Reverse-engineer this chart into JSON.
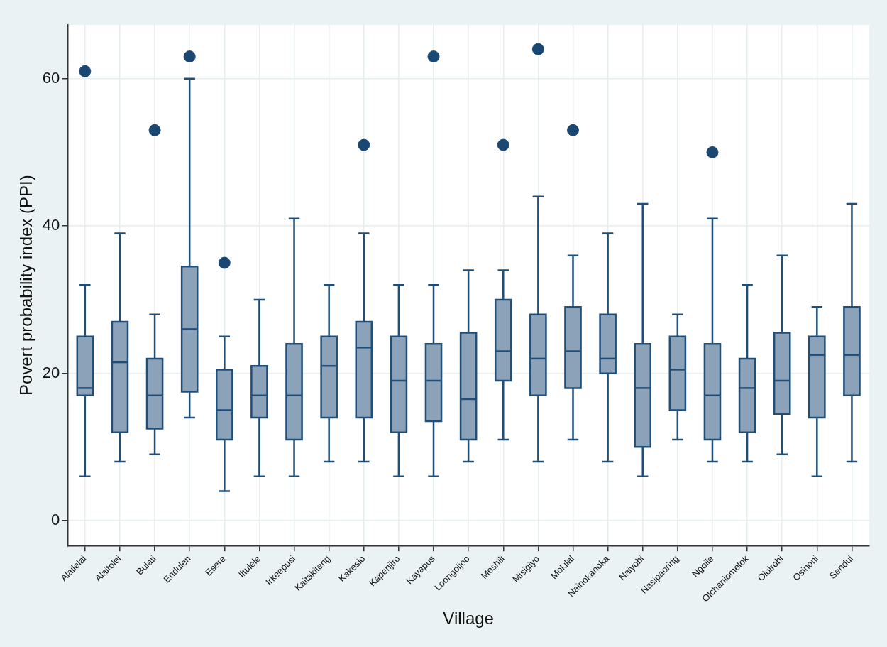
{
  "chart_data": {
    "type": "box",
    "xlabel": "Village",
    "ylabel": "Povert probability index (PPI)",
    "categories": [
      "Alailelai",
      "Alaitolei",
      "Bulati",
      "Endulen",
      "Esere",
      "Iltulele",
      "Irkeepusi",
      "Kaitakiteng",
      "Kakesio",
      "Kapenjiro",
      "Kayapus",
      "Loongoijoo",
      "Meshili",
      "Misigiyo",
      "Mokilal",
      "Nainokanoka",
      "Naiyobi",
      "Nasipaoring",
      "Ngoile",
      "Olchaniomelok",
      "Oloirobi",
      "Osinoni",
      "Sendui"
    ],
    "color": "#8ca2b8",
    "marker": "circle",
    "grid": true,
    "ylim": [
      -3.4,
      67.3
    ],
    "yticks": [
      0,
      20,
      40,
      60
    ],
    "boxes": [
      {
        "low": 6,
        "q1": 17,
        "median": 18,
        "q3": 25,
        "high": 32,
        "outliers": [
          61
        ]
      },
      {
        "low": 8,
        "q1": 12,
        "median": 21.5,
        "q3": 27,
        "high": 39
      },
      {
        "low": 9,
        "q1": 12.5,
        "median": 17,
        "q3": 22,
        "high": 28,
        "outliers": [
          53
        ]
      },
      {
        "low": 14,
        "q1": 17.5,
        "median": 26,
        "q3": 34.5,
        "high": 60,
        "outliers": [
          63
        ]
      },
      {
        "low": 4,
        "q1": 11,
        "median": 15,
        "q3": 20.5,
        "high": 25,
        "outliers": [
          35
        ]
      },
      {
        "low": 6,
        "q1": 14,
        "median": 17,
        "q3": 21,
        "high": 30
      },
      {
        "low": 6,
        "q1": 11,
        "median": 17,
        "q3": 24,
        "high": 41
      },
      {
        "low": 8,
        "q1": 14,
        "median": 21,
        "q3": 25,
        "high": 32
      },
      {
        "low": 8,
        "q1": 14,
        "median": 23.5,
        "q3": 27,
        "high": 39,
        "outliers": [
          51
        ]
      },
      {
        "low": 6,
        "q1": 12,
        "median": 19,
        "q3": 25,
        "high": 32
      },
      {
        "low": 6,
        "q1": 13.5,
        "median": 19,
        "q3": 24,
        "high": 32,
        "outliers": [
          63
        ]
      },
      {
        "low": 8,
        "q1": 11,
        "median": 16.5,
        "q3": 25.5,
        "high": 34
      },
      {
        "low": 11,
        "q1": 19,
        "median": 23,
        "q3": 30,
        "high": 34,
        "outliers": [
          51
        ]
      },
      {
        "low": 8,
        "q1": 17,
        "median": 22,
        "q3": 28,
        "high": 44,
        "outliers": [
          64
        ]
      },
      {
        "low": 11,
        "q1": 18,
        "median": 23,
        "q3": 29,
        "high": 36,
        "outliers": [
          53
        ]
      },
      {
        "low": 8,
        "q1": 20,
        "median": 22,
        "q3": 28,
        "high": 39
      },
      {
        "low": 6,
        "q1": 10,
        "median": 18,
        "q3": 24,
        "high": 43
      },
      {
        "low": 11,
        "q1": 15,
        "median": 20.5,
        "q3": 25,
        "high": 28
      },
      {
        "low": 8,
        "q1": 11,
        "median": 17,
        "q3": 24,
        "high": 41,
        "outliers": [
          50
        ]
      },
      {
        "low": 8,
        "q1": 12,
        "median": 18,
        "q3": 22,
        "high": 32
      },
      {
        "low": 9,
        "q1": 14.5,
        "median": 19,
        "q3": 25.5,
        "high": 36
      },
      {
        "low": 6,
        "q1": 14,
        "median": 22.5,
        "q3": 25,
        "high": 29
      },
      {
        "low": 8,
        "q1": 17,
        "median": 22.5,
        "q3": 29,
        "high": 43
      }
    ]
  }
}
